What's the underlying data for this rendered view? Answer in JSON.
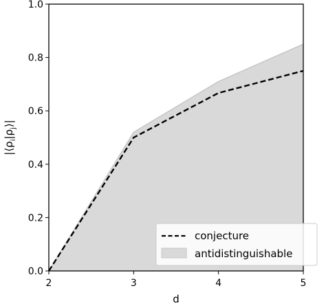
{
  "chart_data": {
    "type": "area",
    "xlabel": "d",
    "ylabel": "|⟨ρ_i|ρ_j⟩|",
    "xlim": [
      2,
      5
    ],
    "ylim": [
      0.0,
      1.0
    ],
    "x_ticks": [
      "2",
      "3",
      "4",
      "5"
    ],
    "y_ticks": [
      "0.0",
      "0.2",
      "0.4",
      "0.6",
      "0.8",
      "1.0"
    ],
    "grid": false,
    "legend_position": "bottom-right",
    "series": [
      {
        "name": "conjecture",
        "style": "dashed-line",
        "color": "#000000",
        "x": [
          2,
          3,
          4,
          5
        ],
        "y": [
          0.0,
          0.5,
          0.667,
          0.75
        ]
      },
      {
        "name": "antidistinguishable",
        "style": "filled-area",
        "color": "#d9d9d9",
        "edge_color": "#c6c6c6",
        "x": [
          2,
          3,
          4,
          5
        ],
        "y": [
          0.0,
          0.52,
          0.71,
          0.85
        ]
      }
    ]
  }
}
